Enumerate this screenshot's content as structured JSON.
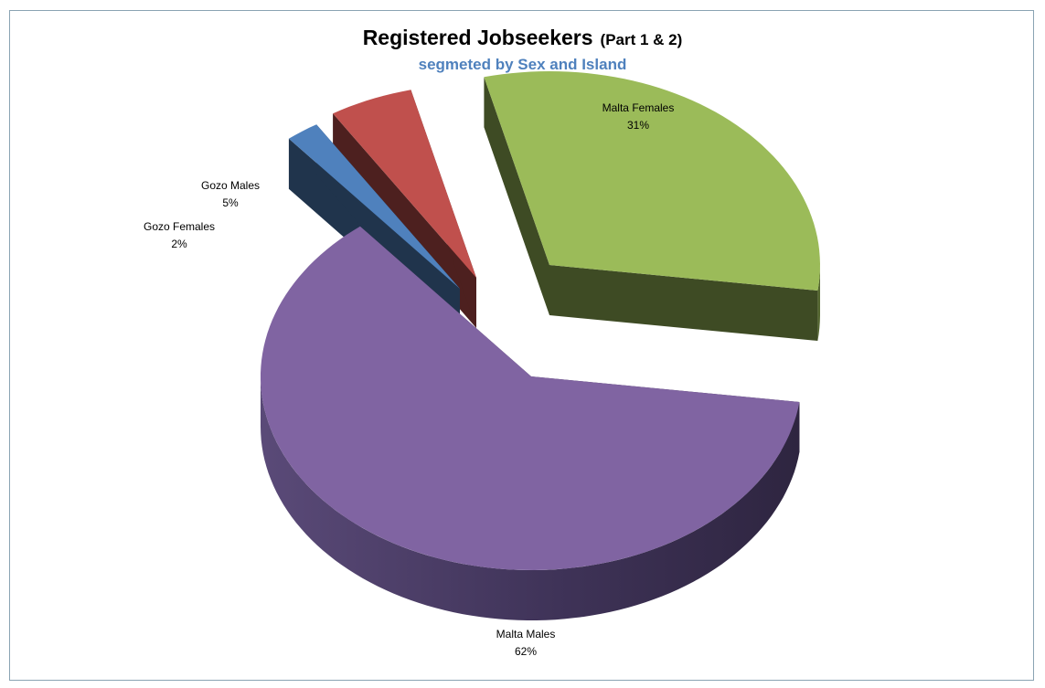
{
  "chart_data": {
    "type": "pie",
    "title": "Registered Jobseekers",
    "title_suffix": "(Part 1 & 2)",
    "subtitle": "segmeted by Sex and Island",
    "style": "3d-exploded",
    "slices": [
      {
        "label": "Malta Females",
        "value": 31,
        "pct_label": "31%",
        "color": "#9bbb59"
      },
      {
        "label": "Malta Males",
        "value": 62,
        "pct_label": "62%",
        "color": "#8064a2"
      },
      {
        "label": "Gozo Females",
        "value": 2,
        "pct_label": "2%",
        "color": "#4f81bd"
      },
      {
        "label": "Gozo Males",
        "value": 5,
        "pct_label": "5%",
        "color": "#c0504d"
      }
    ]
  }
}
